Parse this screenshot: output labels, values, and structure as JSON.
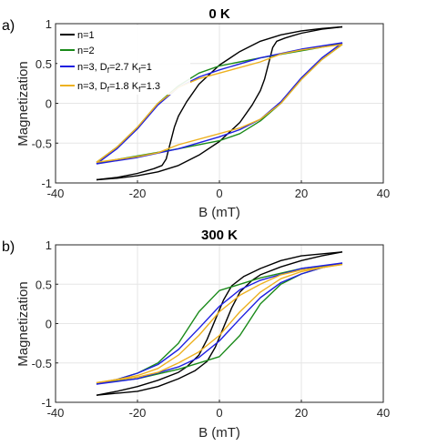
{
  "chart_data": [
    {
      "type": "line",
      "panel_label": "a)",
      "title": "0 K",
      "xlabel": "B (mT)",
      "ylabel": "Magnetization",
      "xlim": [
        -40,
        40
      ],
      "ylim": [
        -1,
        1
      ],
      "xticks": [
        "-40",
        "-20",
        "0",
        "20",
        "40"
      ],
      "yticks": [
        "-1",
        "-0.5",
        "0",
        "0.5",
        "1"
      ],
      "grid": true,
      "legend_position": "top-left",
      "series": [
        {
          "name": "n=1",
          "color": "#000000",
          "descending": [
            [
              30,
              0.96
            ],
            [
              25,
              0.94
            ],
            [
              20,
              0.91
            ],
            [
              15,
              0.86
            ],
            [
              10,
              0.78
            ],
            [
              5,
              0.65
            ],
            [
              0,
              0.48
            ],
            [
              -5,
              0.24
            ],
            [
              -8,
              0.02
            ],
            [
              -10,
              -0.16
            ],
            [
              -11,
              -0.3
            ],
            [
              -12,
              -0.5
            ],
            [
              -13,
              -0.7
            ],
            [
              -14,
              -0.78
            ],
            [
              -16,
              -0.82
            ],
            [
              -18,
              -0.85
            ],
            [
              -20,
              -0.88
            ],
            [
              -25,
              -0.93
            ],
            [
              -30,
              -0.96
            ]
          ],
          "ascending": [
            [
              -30,
              -0.96
            ],
            [
              -25,
              -0.94
            ],
            [
              -20,
              -0.91
            ],
            [
              -15,
              -0.86
            ],
            [
              -10,
              -0.78
            ],
            [
              -5,
              -0.65
            ],
            [
              0,
              -0.48
            ],
            [
              5,
              -0.24
            ],
            [
              8,
              -0.02
            ],
            [
              10,
              0.16
            ],
            [
              11,
              0.3
            ],
            [
              12,
              0.5
            ],
            [
              13,
              0.7
            ],
            [
              14,
              0.78
            ],
            [
              16,
              0.82
            ],
            [
              18,
              0.85
            ],
            [
              20,
              0.88
            ],
            [
              25,
              0.93
            ],
            [
              30,
              0.96
            ]
          ]
        },
        {
          "name": "n=2",
          "color": "#1a8a1a",
          "descending": [
            [
              30,
              0.75
            ],
            [
              20,
              0.66
            ],
            [
              10,
              0.57
            ],
            [
              0,
              0.47
            ],
            [
              -5,
              0.38
            ],
            [
              -10,
              0.22
            ],
            [
              -15,
              0.0
            ],
            [
              -20,
              -0.3
            ],
            [
              -25,
              -0.55
            ],
            [
              -30,
              -0.74
            ]
          ],
          "ascending": [
            [
              -30,
              -0.75
            ],
            [
              -20,
              -0.66
            ],
            [
              -10,
              -0.57
            ],
            [
              0,
              -0.47
            ],
            [
              5,
              -0.38
            ],
            [
              10,
              -0.22
            ],
            [
              15,
              0.0
            ],
            [
              20,
              0.3
            ],
            [
              25,
              0.55
            ],
            [
              30,
              0.74
            ]
          ]
        },
        {
          "name": "n=3, D_f=2.7 K_f=1",
          "color": "#1f1fe0",
          "descending": [
            [
              30,
              0.76
            ],
            [
              20,
              0.68
            ],
            [
              10,
              0.57
            ],
            [
              0,
              0.42
            ],
            [
              -5,
              0.33
            ],
            [
              -10,
              0.2
            ],
            [
              -15,
              -0.02
            ],
            [
              -20,
              -0.32
            ],
            [
              -25,
              -0.57
            ],
            [
              -30,
              -0.76
            ]
          ],
          "ascending": [
            [
              -30,
              -0.76
            ],
            [
              -20,
              -0.68
            ],
            [
              -10,
              -0.57
            ],
            [
              0,
              -0.42
            ],
            [
              5,
              -0.33
            ],
            [
              10,
              -0.2
            ],
            [
              15,
              0.02
            ],
            [
              20,
              0.32
            ],
            [
              25,
              0.57
            ],
            [
              30,
              0.76
            ]
          ]
        },
        {
          "name": "n=3, D_f=1.8 K_f=1.3",
          "color": "#edb120",
          "descending": [
            [
              30,
              0.74
            ],
            [
              20,
              0.67
            ],
            [
              15,
              0.62
            ],
            [
              10,
              0.52
            ],
            [
              0,
              0.38
            ],
            [
              -5,
              0.31
            ],
            [
              -10,
              0.2
            ],
            [
              -15,
              0.0
            ],
            [
              -20,
              -0.3
            ],
            [
              -25,
              -0.55
            ],
            [
              -30,
              -0.74
            ]
          ],
          "ascending": [
            [
              -30,
              -0.74
            ],
            [
              -20,
              -0.67
            ],
            [
              -15,
              -0.62
            ],
            [
              -10,
              -0.52
            ],
            [
              0,
              -0.38
            ],
            [
              5,
              -0.31
            ],
            [
              10,
              -0.2
            ],
            [
              15,
              0.0
            ],
            [
              20,
              0.3
            ],
            [
              25,
              0.55
            ],
            [
              30,
              0.74
            ]
          ]
        }
      ]
    },
    {
      "type": "line",
      "panel_label": "b)",
      "title": "300 K",
      "xlabel": "B (mT)",
      "ylabel": "Magnetization",
      "xlim": [
        -40,
        40
      ],
      "ylim": [
        -1,
        1
      ],
      "xticks": [
        "-40",
        "-20",
        "0",
        "20",
        "40"
      ],
      "yticks": [
        "-1",
        "-0.5",
        "0",
        "0.5",
        "1"
      ],
      "grid": true,
      "series": [
        {
          "name": "n=1",
          "color": "#000000",
          "descending": [
            [
              30,
              0.91
            ],
            [
              20,
              0.86
            ],
            [
              15,
              0.8
            ],
            [
              10,
              0.7
            ],
            [
              6,
              0.6
            ],
            [
              3,
              0.48
            ],
            [
              1,
              0.3
            ],
            [
              -1,
              0.05
            ],
            [
              -3,
              -0.2
            ],
            [
              -5,
              -0.4
            ],
            [
              -8,
              -0.55
            ],
            [
              -10,
              -0.62
            ],
            [
              -15,
              -0.72
            ],
            [
              -20,
              -0.8
            ],
            [
              -25,
              -0.86
            ],
            [
              -30,
              -0.91
            ]
          ],
          "ascending": [
            [
              -30,
              -0.91
            ],
            [
              -20,
              -0.86
            ],
            [
              -15,
              -0.8
            ],
            [
              -10,
              -0.7
            ],
            [
              -6,
              -0.6
            ],
            [
              -3,
              -0.48
            ],
            [
              -1,
              -0.3
            ],
            [
              1,
              -0.05
            ],
            [
              3,
              0.2
            ],
            [
              5,
              0.4
            ],
            [
              8,
              0.55
            ],
            [
              10,
              0.62
            ],
            [
              15,
              0.72
            ],
            [
              20,
              0.8
            ],
            [
              25,
              0.86
            ],
            [
              30,
              0.91
            ]
          ]
        },
        {
          "name": "n=2",
          "color": "#1a8a1a",
          "descending": [
            [
              30,
              0.76
            ],
            [
              20,
              0.7
            ],
            [
              10,
              0.58
            ],
            [
              5,
              0.5
            ],
            [
              0,
              0.42
            ],
            [
              -5,
              0.15
            ],
            [
              -10,
              -0.25
            ],
            [
              -15,
              -0.5
            ],
            [
              -20,
              -0.63
            ],
            [
              -25,
              -0.71
            ],
            [
              -30,
              -0.76
            ]
          ],
          "ascending": [
            [
              -30,
              -0.76
            ],
            [
              -20,
              -0.7
            ],
            [
              -10,
              -0.58
            ],
            [
              -5,
              -0.5
            ],
            [
              0,
              -0.42
            ],
            [
              5,
              -0.15
            ],
            [
              10,
              0.25
            ],
            [
              15,
              0.5
            ],
            [
              20,
              0.63
            ],
            [
              25,
              0.71
            ],
            [
              30,
              0.76
            ]
          ]
        },
        {
          "name": "n=3, D_f=2.7 K_f=1",
          "color": "#1f1fe0",
          "descending": [
            [
              30,
              0.77
            ],
            [
              20,
              0.7
            ],
            [
              10,
              0.55
            ],
            [
              5,
              0.43
            ],
            [
              0,
              0.22
            ],
            [
              -5,
              -0.06
            ],
            [
              -10,
              -0.33
            ],
            [
              -15,
              -0.52
            ],
            [
              -20,
              -0.63
            ],
            [
              -25,
              -0.71
            ],
            [
              -30,
              -0.77
            ]
          ],
          "ascending": [
            [
              -30,
              -0.77
            ],
            [
              -20,
              -0.7
            ],
            [
              -10,
              -0.55
            ],
            [
              -5,
              -0.43
            ],
            [
              0,
              -0.22
            ],
            [
              5,
              0.06
            ],
            [
              10,
              0.33
            ],
            [
              15,
              0.52
            ],
            [
              20,
              0.63
            ],
            [
              25,
              0.71
            ],
            [
              30,
              0.77
            ]
          ]
        },
        {
          "name": "n=3, D_f=1.8 K_f=1.3",
          "color": "#edb120",
          "descending": [
            [
              30,
              0.75
            ],
            [
              20,
              0.68
            ],
            [
              15,
              0.62
            ],
            [
              10,
              0.5
            ],
            [
              5,
              0.36
            ],
            [
              0,
              0.15
            ],
            [
              -5,
              -0.15
            ],
            [
              -10,
              -0.4
            ],
            [
              -15,
              -0.57
            ],
            [
              -20,
              -0.66
            ],
            [
              -25,
              -0.71
            ],
            [
              -30,
              -0.75
            ]
          ],
          "ascending": [
            [
              -30,
              -0.75
            ],
            [
              -20,
              -0.68
            ],
            [
              -15,
              -0.62
            ],
            [
              -10,
              -0.5
            ],
            [
              -5,
              -0.36
            ],
            [
              0,
              -0.15
            ],
            [
              5,
              0.15
            ],
            [
              10,
              0.4
            ],
            [
              15,
              0.57
            ],
            [
              20,
              0.66
            ],
            [
              25,
              0.71
            ],
            [
              30,
              0.75
            ]
          ]
        }
      ]
    }
  ],
  "legend": [
    {
      "text": "n=1",
      "color": "#000000"
    },
    {
      "text": "n=2",
      "color": "#1a8a1a"
    },
    {
      "text_main": "n=3, D",
      "sub1": "f",
      "mid": "=2.7 K",
      "sub2": "f",
      "tail": "=1",
      "color": "#1f1fe0"
    },
    {
      "text_main": "n=3, D",
      "sub1": "f",
      "mid": "=1.8 K",
      "sub2": "f",
      "tail": "=1.3",
      "color": "#edb120"
    }
  ]
}
